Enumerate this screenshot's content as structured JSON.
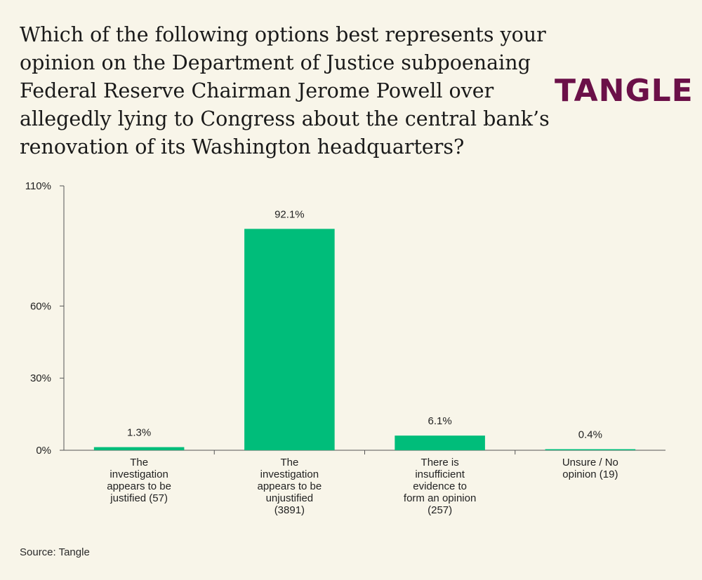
{
  "title_lines": [
    "Which of the following options best represents your",
    "opinion on the Department of Justice subpoenaing",
    "Federal Reserve Chairman Jerome Powell over",
    "allegedly lying to Congress about the central bank’s",
    "renovation of its Washington headquarters?"
  ],
  "brand": "TANGLE",
  "source": "Source: Tangle",
  "colors": {
    "bar": "#00bd7a",
    "axis": "#555555",
    "brand": "#6b1048",
    "background": "#f8f5e9"
  },
  "chart_data": {
    "type": "bar",
    "title": "Which of the following options best represents your opinion on the Department of Justice subpoenaing Federal Reserve Chairman Jerome Powell over allegedly lying to Congress about the central bank’s renovation of its Washington headquarters?",
    "categories": [
      [
        "The",
        "investigation",
        "appears to be",
        "justified (57)"
      ],
      [
        "The",
        "investigation",
        "appears to be",
        "unjustified",
        "(3891)"
      ],
      [
        "There is",
        "insufficient",
        "evidence to",
        "form an opinion",
        "(257)"
      ],
      [
        "Unsure / No",
        "opinion (19)"
      ]
    ],
    "values": [
      1.3,
      92.1,
      6.1,
      0.4
    ],
    "data_labels": [
      "1.3%",
      "92.1%",
      "6.1%",
      "0.4%"
    ],
    "yticks": [
      0,
      30,
      60,
      110
    ],
    "ytick_labels": [
      "0%",
      "30%",
      "60%",
      "110%"
    ],
    "ylim": [
      0,
      110
    ],
    "xlabel": "",
    "ylabel": "",
    "grid": false
  }
}
